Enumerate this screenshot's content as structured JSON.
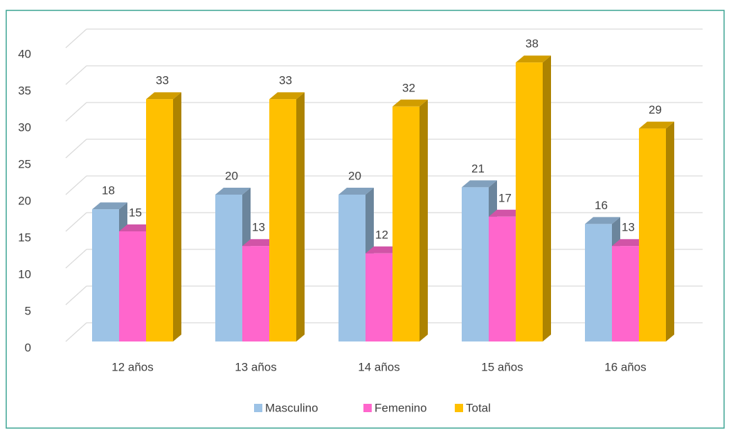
{
  "chart_data": {
    "type": "bar3d",
    "categories": [
      "12 años",
      "13 años",
      "14 años",
      "15 años",
      "16 años"
    ],
    "series": [
      {
        "name": "Masculino",
        "color": "#9dc3e6",
        "values": [
          18,
          20,
          20,
          21,
          16
        ]
      },
      {
        "name": "Femenino",
        "color": "#ff66cc",
        "values": [
          15,
          13,
          12,
          17,
          13
        ]
      },
      {
        "name": "Total",
        "color": "#ffc000",
        "values": [
          33,
          33,
          32,
          38,
          29
        ]
      }
    ],
    "ylim": [
      0,
      40
    ],
    "yticks": [
      0,
      5,
      10,
      15,
      20,
      25,
      30,
      35,
      40
    ],
    "grid": true,
    "legend": "bottom"
  }
}
